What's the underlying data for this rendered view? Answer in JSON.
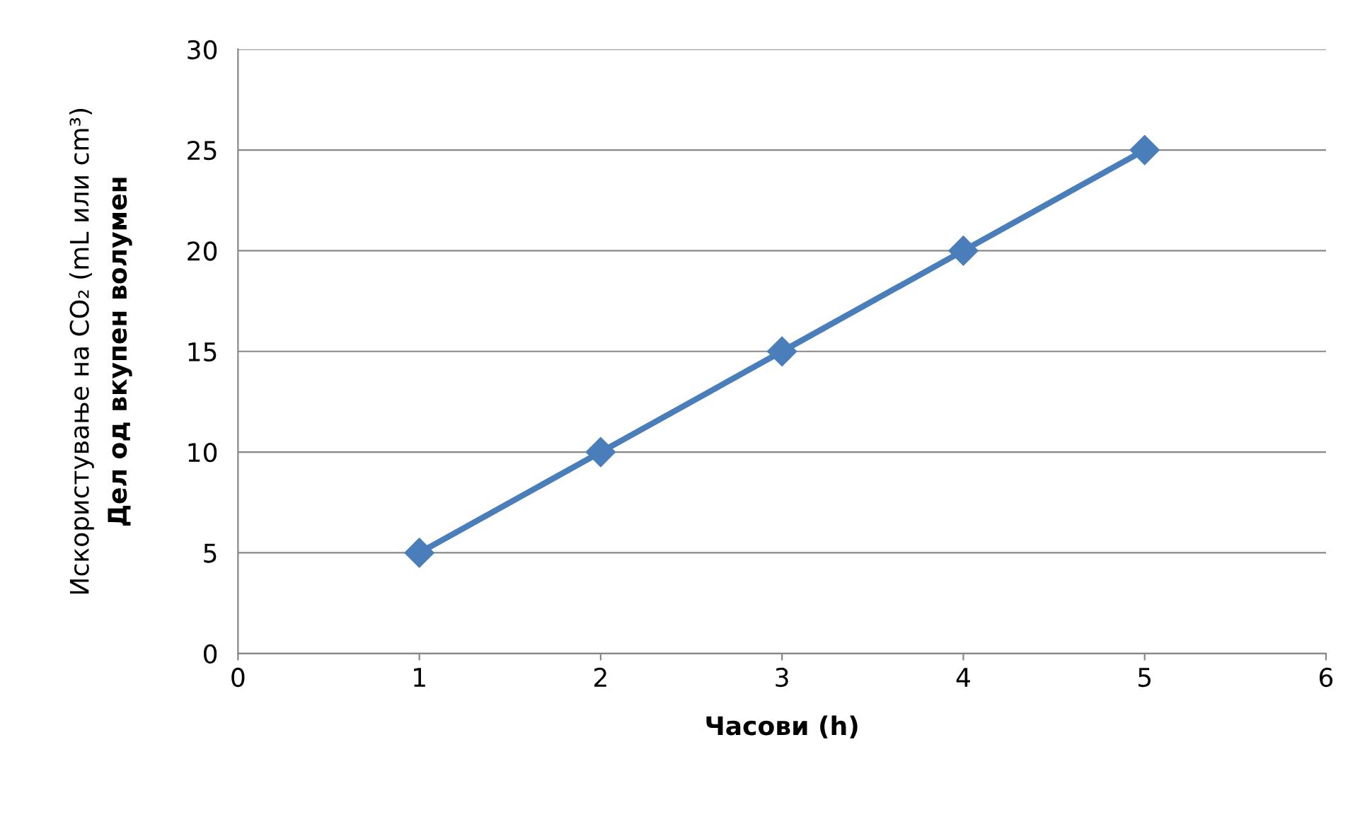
{
  "chart_data": {
    "type": "line",
    "x": [
      1,
      2,
      3,
      4,
      5
    ],
    "series": [
      {
        "color": "#4a7ebb",
        "values": [
          5,
          10,
          15,
          20,
          25
        ]
      }
    ],
    "xlim": [
      0,
      6
    ],
    "xticks": [
      0,
      1,
      2,
      3,
      4,
      5,
      6
    ],
    "ylim": [
      0,
      30
    ],
    "yticks": [
      0,
      5,
      10,
      15,
      20,
      25,
      30
    ],
    "xlabel": "Часови (h)",
    "ylabel": "Искористување на CO₂ (mL или cm³)\nДел од вкупен волумен",
    "grid": "y",
    "marker": "diamond",
    "line_style": "solid",
    "legend": false
  }
}
